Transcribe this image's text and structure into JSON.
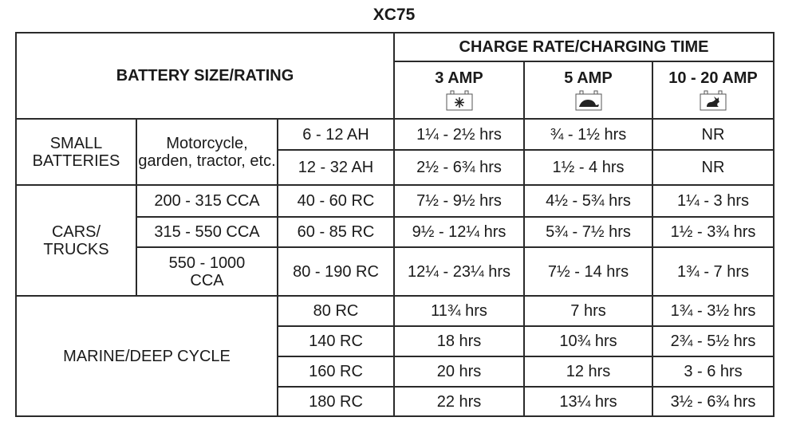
{
  "title": "XC75",
  "header": {
    "battery_size": "BATTERY SIZE/RATING",
    "charge_rate": "CHARGE RATE/CHARGING TIME",
    "amps": [
      {
        "label": "3 AMP",
        "icon": "snowflake-battery-icon"
      },
      {
        "label": "5 AMP",
        "icon": "turtle-battery-icon"
      },
      {
        "label": "10 - 20 AMP",
        "icon": "rabbit-battery-icon"
      }
    ]
  },
  "small": {
    "category": "SMALL BATTERIES",
    "type": "Motorcycle, garden, tractor, etc.",
    "rows": [
      {
        "rating": "6 - 12 AH",
        "times": [
          "1¼ - 2½ hrs",
          "¾ - 1½ hrs",
          "NR"
        ]
      },
      {
        "rating": "12 - 32 AH",
        "times": [
          "2½ - 6¾ hrs",
          "1½ - 4 hrs",
          "NR"
        ]
      }
    ]
  },
  "cars": {
    "category": "CARS/ TRUCKS",
    "rows": [
      {
        "cca": "200 - 315 CCA",
        "rc": "40 - 60 RC",
        "times": [
          "7½ - 9½ hrs",
          "4½ - 5¾ hrs",
          "1¼ - 3 hrs"
        ]
      },
      {
        "cca": "315 - 550 CCA",
        "rc": "60 - 85 RC",
        "times": [
          "9½ - 12¼ hrs",
          "5¾ - 7½ hrs",
          "1½ - 3¾ hrs"
        ]
      },
      {
        "cca": "550 - 1000 CCA",
        "rc": "80 - 190 RC",
        "times": [
          "12¼ - 23¼ hrs",
          "7½ - 14 hrs",
          "1¾ - 7 hrs"
        ]
      }
    ]
  },
  "marine": {
    "category": "MARINE/DEEP CYCLE",
    "rows": [
      {
        "rc": "80 RC",
        "times": [
          "11¾ hrs",
          "7 hrs",
          "1¾ - 3½ hrs"
        ]
      },
      {
        "rc": "140 RC",
        "times": [
          "18 hrs",
          "10¾ hrs",
          "2¾ - 5½ hrs"
        ]
      },
      {
        "rc": "160 RC",
        "times": [
          "20 hrs",
          "12 hrs",
          "3 - 6 hrs"
        ]
      },
      {
        "rc": "180 RC",
        "times": [
          "22 hrs",
          "13¼ hrs",
          "3½ - 6¾ hrs"
        ]
      }
    ]
  }
}
